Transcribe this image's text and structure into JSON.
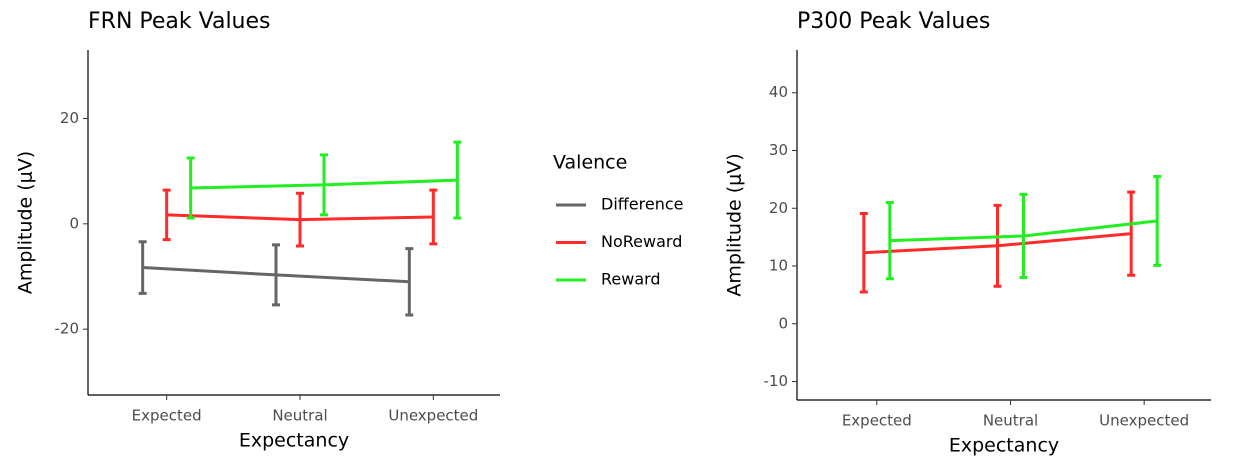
{
  "chart_data": [
    {
      "type": "line",
      "title": "FRN Peak Values",
      "x_label": "Expectancy",
      "y_label": "Amplitude (μV)",
      "categories": [
        "Expected",
        "Neutral",
        "Unexpected"
      ],
      "legend_title": "Valence",
      "series": [
        {
          "name": "Difference",
          "color": "#666666",
          "values": [
            -8.3,
            -9.7,
            -11.0
          ],
          "errors": [
            4.9,
            5.7,
            6.3
          ]
        },
        {
          "name": "NoReward",
          "color": "#ff2a2a",
          "values": [
            1.7,
            0.8,
            1.3
          ],
          "errors": [
            4.7,
            5.0,
            5.1
          ]
        },
        {
          "name": "Reward",
          "color": "#22ee22",
          "values": [
            6.8,
            7.4,
            8.3
          ],
          "errors": [
            5.7,
            5.7,
            7.2
          ]
        }
      ],
      "ylim": [
        -32.5,
        33
      ],
      "yticks": [
        -20,
        0,
        20
      ]
    },
    {
      "type": "line",
      "title": "P300 Peak Values",
      "x_label": "Expectancy",
      "y_label": "Amplitude (μV)",
      "categories": [
        "Expected",
        "Neutral",
        "Unexpected"
      ],
      "series": [
        {
          "name": "NoReward",
          "color": "#ff2a2a",
          "values": [
            12.3,
            13.5,
            15.6
          ],
          "errors": [
            6.8,
            7.0,
            7.2
          ]
        },
        {
          "name": "Reward",
          "color": "#22ee22",
          "values": [
            14.4,
            15.2,
            17.8
          ],
          "errors": [
            6.6,
            7.2,
            7.7
          ]
        }
      ],
      "ylim": [
        -13.2,
        47.4
      ],
      "yticks": [
        -10,
        0,
        10,
        20,
        30,
        40
      ]
    }
  ]
}
